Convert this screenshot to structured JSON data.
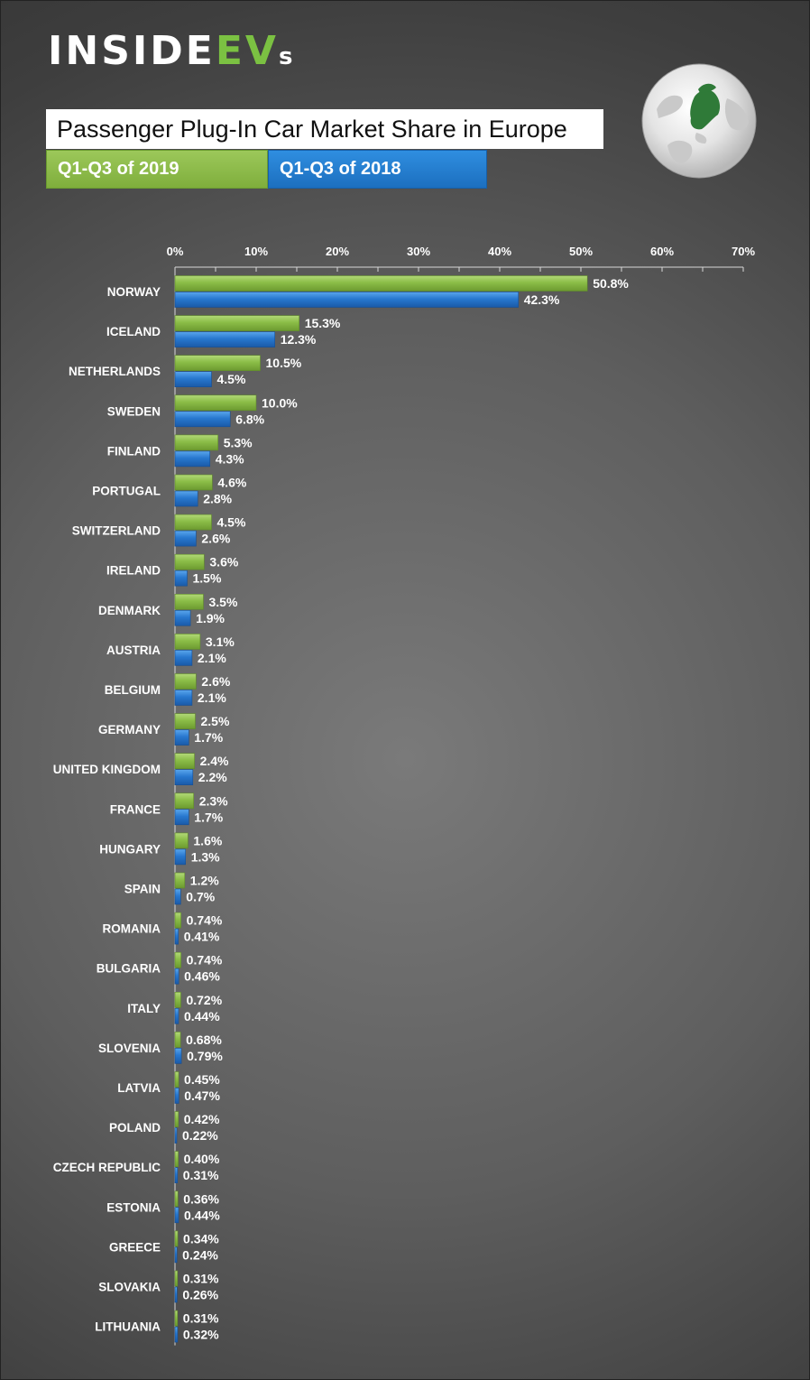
{
  "header": {
    "logo_main": "INSIDE",
    "logo_ev": "EV",
    "logo_s": "s",
    "title": "Passenger Plug-In Car Market Share in Europe",
    "legend_2019": "Q1-Q3 of 2019",
    "legend_2018": "Q1-Q3 of 2018"
  },
  "colors": {
    "series_2019": "#8bbd47",
    "series_2018": "#2878cf",
    "globe_land_highlight": "#2f7a38"
  },
  "chart_data": {
    "type": "bar",
    "orientation": "horizontal",
    "title": "Passenger Plug-In Car Market Share in Europe",
    "xlim": [
      0,
      70
    ],
    "x_ticks": [
      "0%",
      "10%",
      "20%",
      "30%",
      "40%",
      "50%",
      "60%",
      "70%"
    ],
    "grid": false,
    "legend_position": "top-left",
    "categories": [
      "NORWAY",
      "ICELAND",
      "NETHERLANDS",
      "SWEDEN",
      "FINLAND",
      "PORTUGAL",
      "SWITZERLAND",
      "IRELAND",
      "DENMARK",
      "AUSTRIA",
      "BELGIUM",
      "GERMANY",
      "UNITED KINGDOM",
      "FRANCE",
      "HUNGARY",
      "SPAIN",
      "ROMANIA",
      "BULGARIA",
      "ITALY",
      "SLOVENIA",
      "LATVIA",
      "POLAND",
      "CZECH REPUBLIC",
      "ESTONIA",
      "GREECE",
      "SLOVAKIA",
      "LITHUANIA"
    ],
    "series": [
      {
        "name": "Q1-Q3 of 2019",
        "values": [
          50.8,
          15.3,
          10.5,
          10.0,
          5.3,
          4.6,
          4.5,
          3.6,
          3.5,
          3.1,
          2.6,
          2.5,
          2.4,
          2.3,
          1.6,
          1.2,
          0.74,
          0.74,
          0.72,
          0.68,
          0.45,
          0.42,
          0.4,
          0.36,
          0.34,
          0.31,
          0.31
        ],
        "labels": [
          "50.8%",
          "15.3%",
          "10.5%",
          "10.0%",
          "5.3%",
          "4.6%",
          "4.5%",
          "3.6%",
          "3.5%",
          "3.1%",
          "2.6%",
          "2.5%",
          "2.4%",
          "2.3%",
          "1.6%",
          "1.2%",
          "0.74%",
          "0.74%",
          "0.72%",
          "0.68%",
          "0.45%",
          "0.42%",
          "0.40%",
          "0.36%",
          "0.34%",
          "0.31%",
          "0.31%"
        ]
      },
      {
        "name": "Q1-Q3 of 2018",
        "values": [
          42.3,
          12.3,
          4.5,
          6.8,
          4.3,
          2.8,
          2.6,
          1.5,
          1.9,
          2.1,
          2.1,
          1.7,
          2.2,
          1.7,
          1.3,
          0.7,
          0.41,
          0.46,
          0.44,
          0.79,
          0.47,
          0.22,
          0.31,
          0.44,
          0.24,
          0.26,
          0.32
        ],
        "labels": [
          "42.3%",
          "12.3%",
          "4.5%",
          "6.8%",
          "4.3%",
          "2.8%",
          "2.6%",
          "1.5%",
          "1.9%",
          "2.1%",
          "2.1%",
          "1.7%",
          "2.2%",
          "1.7%",
          "1.3%",
          "0.7%",
          "0.41%",
          "0.46%",
          "0.44%",
          "0.79%",
          "0.47%",
          "0.22%",
          "0.31%",
          "0.44%",
          "0.24%",
          "0.26%",
          "0.32%"
        ]
      }
    ]
  }
}
